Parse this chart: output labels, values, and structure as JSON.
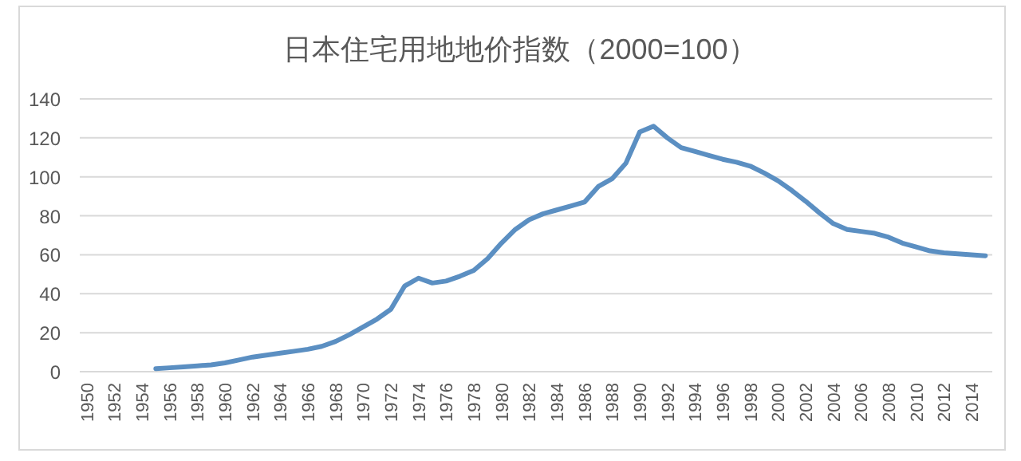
{
  "chart_data": {
    "type": "line",
    "title": "日本住宅用地地价指数（2000=100）",
    "categories": [
      "1950",
      null,
      "1952",
      null,
      "1954",
      null,
      "1956",
      null,
      "1958",
      null,
      "1960",
      null,
      "1962",
      null,
      "1964",
      null,
      "1966",
      null,
      "1968",
      null,
      "1970",
      null,
      "1972",
      null,
      "1974",
      null,
      "1976",
      null,
      "1978",
      null,
      "1980",
      null,
      "1982",
      null,
      "1984",
      null,
      "1986",
      null,
      "1988",
      null,
      "1990",
      null,
      "1992",
      null,
      "1994",
      null,
      "1996",
      null,
      "1998",
      null,
      "2000",
      null,
      "2002",
      null,
      "2004",
      null,
      "2006",
      null,
      "2008",
      null,
      "2010",
      null,
      "2012",
      null,
      "2014",
      null
    ],
    "values": [
      null,
      null,
      null,
      null,
      null,
      1.5,
      2,
      2.5,
      3,
      3.5,
      4.5,
      6,
      7.5,
      8.5,
      9.5,
      10.5,
      11.5,
      13,
      15.5,
      19,
      23,
      27,
      32,
      44,
      48,
      45.5,
      46.5,
      49,
      52,
      58,
      66,
      73,
      78,
      81,
      83,
      85,
      87,
      95,
      99,
      107,
      123,
      126,
      120,
      115,
      113,
      111,
      109,
      107.5,
      105.5,
      102,
      98,
      93,
      87.5,
      81.5,
      76,
      73,
      72,
      71,
      69,
      66,
      64,
      62,
      61,
      60.5,
      60,
      59.5
    ],
    "color": "#5b8fc2",
    "ylim": [
      0,
      140
    ],
    "yticks": [
      0,
      20,
      40,
      60,
      80,
      100,
      120,
      140
    ],
    "grid": "y"
  }
}
